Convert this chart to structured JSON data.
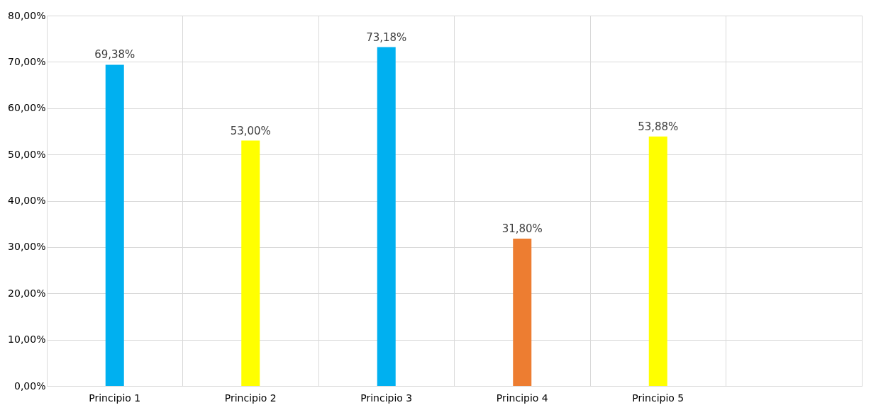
{
  "chart_data": {
    "type": "bar",
    "categories": [
      "Principio 1",
      "Principio 2",
      "Principio 3",
      "Principio 4",
      "Principio 5",
      null
    ],
    "values": [
      69.38,
      53.0,
      73.18,
      31.8,
      53.88,
      null
    ],
    "colors": [
      "#00b0f0",
      "#ffff00",
      "#00b0f0",
      "#ed7d31",
      "#ffff00",
      null
    ],
    "ylim": [
      0,
      80
    ],
    "yticks": [
      {
        "value": 0,
        "label": "0,00%"
      },
      {
        "value": 10,
        "label": "10,00%"
      },
      {
        "value": 20,
        "label": "20,00%"
      },
      {
        "value": 30,
        "label": "30,00%"
      },
      {
        "value": 40,
        "label": "40,00%"
      },
      {
        "value": 50,
        "label": "50,00%"
      },
      {
        "value": 60,
        "label": "60,00%"
      },
      {
        "value": 70,
        "label": "70,00%"
      },
      {
        "value": 80,
        "label": "80,00%"
      }
    ],
    "value_labels": [
      "69,38%",
      "53,00%",
      "73,18%",
      "31,80%",
      "53,88%",
      null
    ],
    "grid": true
  }
}
